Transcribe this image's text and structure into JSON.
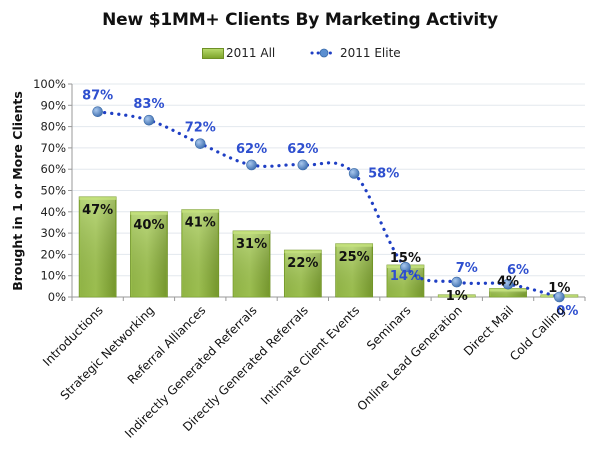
{
  "chart_data": {
    "type": "bar",
    "title": "New $1MM+ Clients By Marketing Activity",
    "xlabel": "",
    "ylabel": "Brought in 1 or More Clients",
    "ylim": [
      0,
      100
    ],
    "yticks": [
      "0%",
      "10%",
      "20%",
      "30%",
      "40%",
      "50%",
      "60%",
      "70%",
      "80%",
      "90%",
      "100%"
    ],
    "grid": true,
    "legend_position": "top",
    "categories": [
      "Introductions",
      "Strategic Networking",
      "Referral Alliances",
      "Indirectly Generated Referrals",
      "Directly Generated Referrals",
      "Intimate Client Events",
      "Seminars",
      "Online Lead Generation",
      "Direct Mail",
      "Cold Calling"
    ],
    "series": [
      {
        "name": "2011 All",
        "type": "bar",
        "color": "#8db63c",
        "values": [
          47,
          40,
          41,
          31,
          22,
          25,
          15,
          1,
          4,
          1
        ],
        "labels": [
          "47%",
          "40%",
          "41%",
          "31%",
          "22%",
          "25%",
          "15%",
          "1%",
          "4%",
          "1%"
        ]
      },
      {
        "name": "2011 Elite",
        "type": "line",
        "style": "dotted",
        "color": "#1f3fc4",
        "marker_color": "#4f81bd",
        "values": [
          87,
          83,
          72,
          62,
          62,
          58,
          14,
          7,
          6,
          0
        ],
        "labels": [
          "87%",
          "83%",
          "72%",
          "62%",
          "62%",
          "58%",
          "14%",
          "7%",
          "6%",
          "0%"
        ]
      }
    ]
  }
}
